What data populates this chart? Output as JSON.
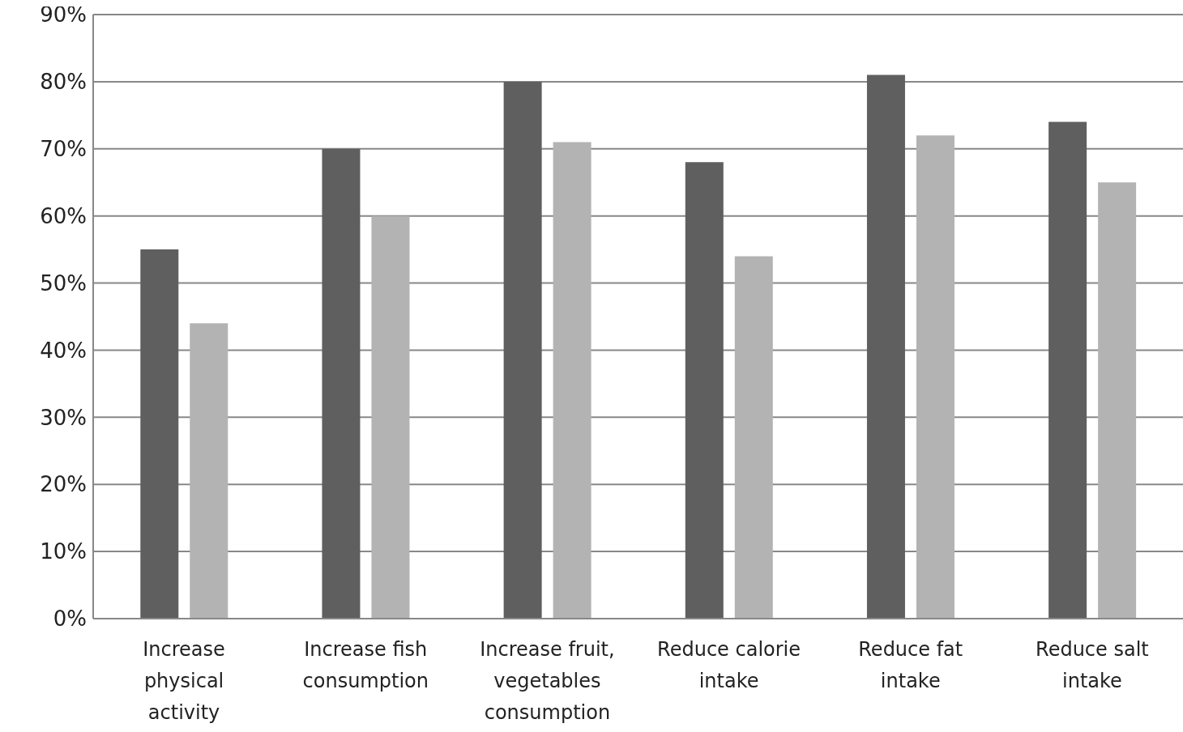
{
  "chart_data": {
    "type": "bar",
    "categories": [
      "Increase physical activity",
      "Increase fish consumption",
      "Increase fruit, vegetables consumption",
      "Reduce calorie intake",
      "Reduce fat intake",
      "Reduce salt intake"
    ],
    "series": [
      {
        "color": "#5f5f5f",
        "values": [
          55,
          70,
          80,
          68,
          81,
          74
        ]
      },
      {
        "color": "#b3b3b3",
        "values": [
          44,
          60,
          71,
          54,
          72,
          65
        ]
      }
    ],
    "ylim": [
      0,
      90
    ],
    "yticks": [
      {
        "value": 0,
        "label": "0%"
      },
      {
        "value": 10,
        "label": "10%"
      },
      {
        "value": 20,
        "label": "20%"
      },
      {
        "value": 30,
        "label": "30%"
      },
      {
        "value": 40,
        "label": "40%"
      },
      {
        "value": 50,
        "label": "50%"
      },
      {
        "value": 60,
        "label": "60%"
      },
      {
        "value": 70,
        "label": "70%"
      },
      {
        "value": 80,
        "label": "80%"
      },
      {
        "value": 90,
        "label": "90%"
      }
    ],
    "grid": "y",
    "legend": false
  }
}
